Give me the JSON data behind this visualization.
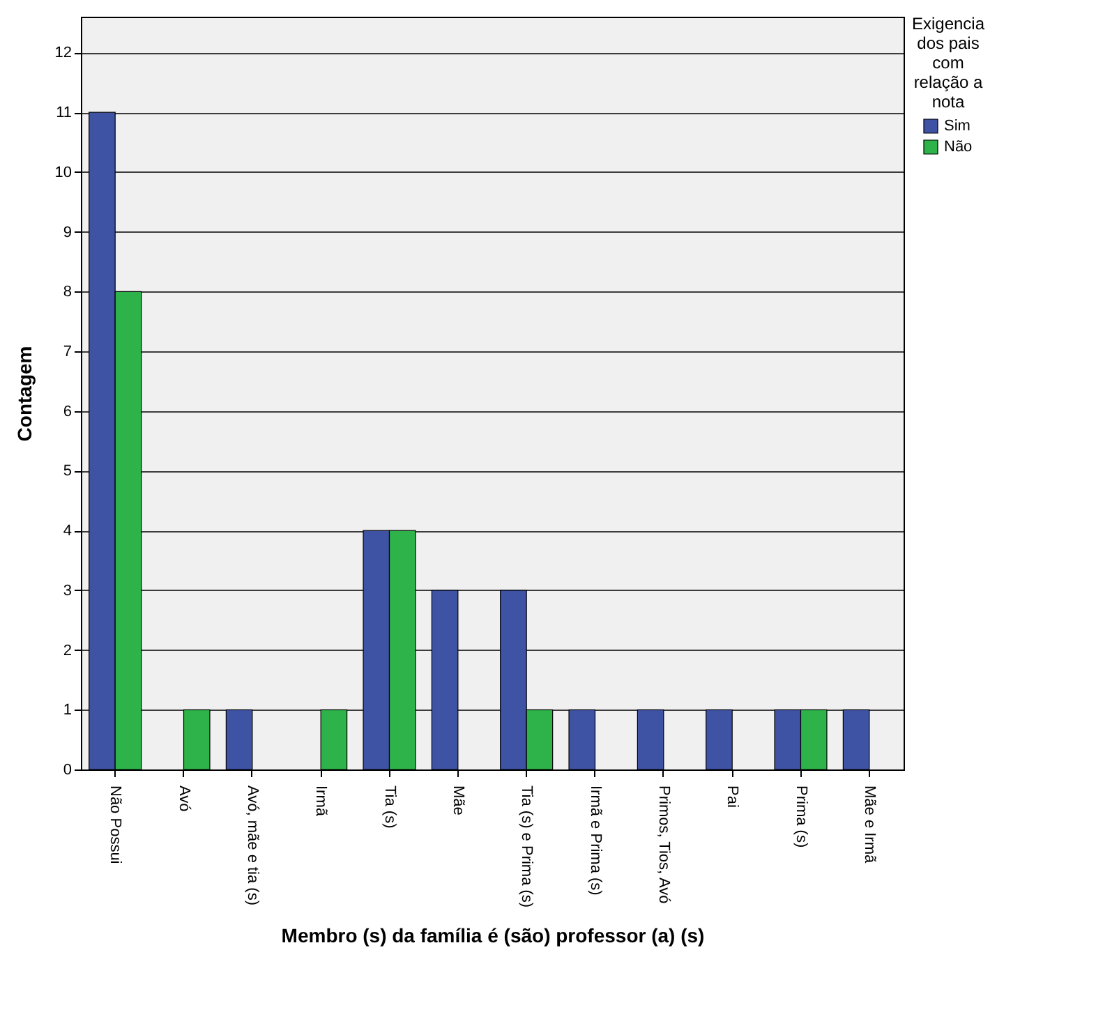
{
  "chart_data": {
    "type": "bar",
    "xlabel": "Membro (s) da família é (são) professor (a) (s)",
    "ylabel": "Contagem",
    "legend_title": "Exigencia dos pais com relação a nota",
    "categories": [
      "Não Possui",
      "Avó",
      "Avó, mãe e tia (s)",
      "Irmã",
      "Tia (s)",
      "Mãe",
      "Tia (s) e Prima (s)",
      "Irmã e Prima (s)",
      "Primos, Tios, Avó",
      "Pai",
      "Prima (s)",
      "Mãe e Irmã"
    ],
    "series": [
      {
        "name": "Sim",
        "color": "#3e53a4",
        "values": [
          11,
          null,
          1,
          null,
          4,
          3,
          3,
          1,
          1,
          1,
          1,
          1
        ]
      },
      {
        "name": "Não",
        "color": "#2eb34a",
        "values": [
          8,
          1,
          null,
          1,
          4,
          null,
          1,
          null,
          null,
          null,
          1,
          null
        ]
      }
    ],
    "ylim": [
      0,
      12.6
    ],
    "yticks": [
      0,
      1,
      2,
      3,
      4,
      5,
      6,
      7,
      8,
      9,
      10,
      11,
      12
    ],
    "grid": "y",
    "legend": "top right"
  }
}
